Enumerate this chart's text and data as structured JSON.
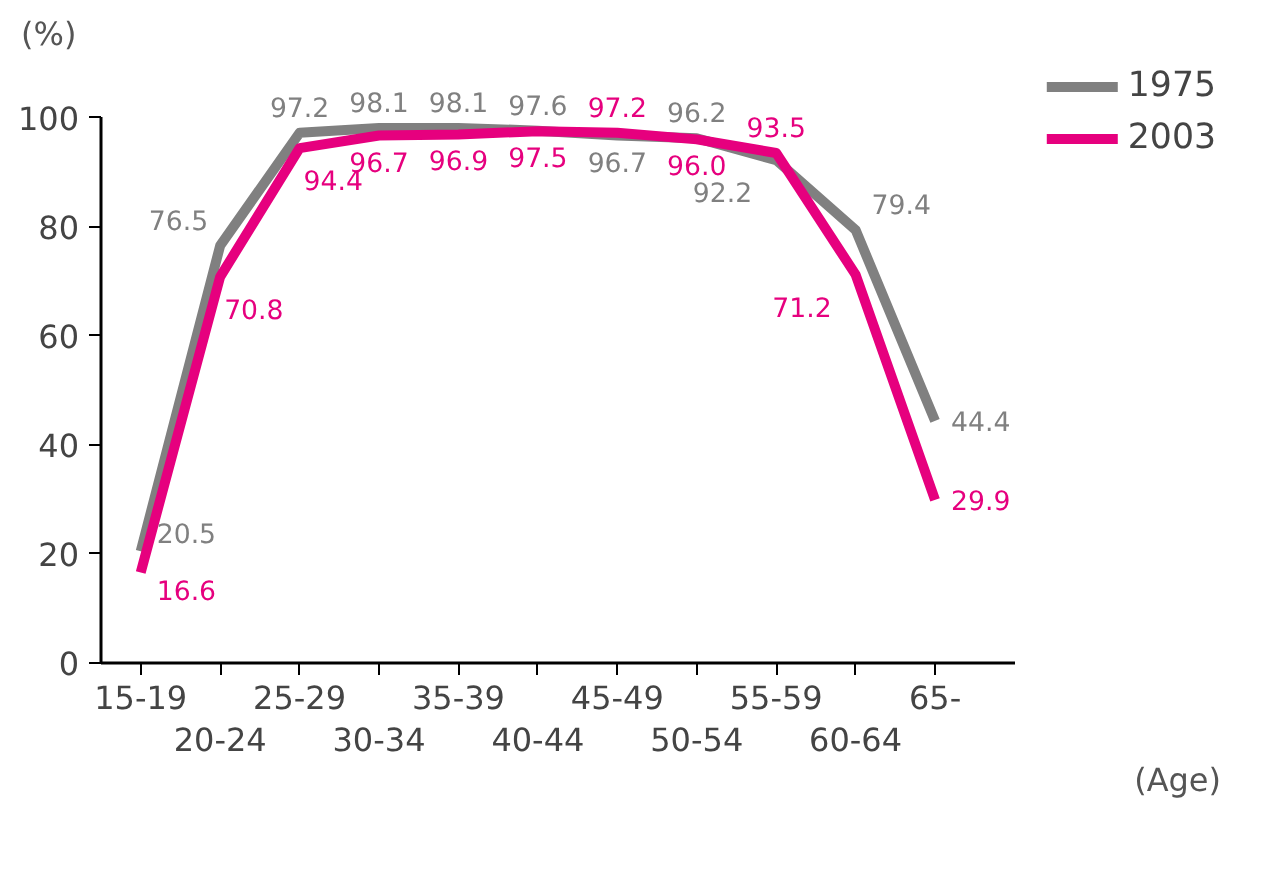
{
  "chart_data": {
    "type": "line",
    "ylabel": "(%)",
    "xlabel": "(Age)",
    "categories": [
      "15-19",
      "20-24",
      "25-29",
      "30-34",
      "35-39",
      "40-44",
      "45-49",
      "50-54",
      "55-59",
      "60-64",
      "65-"
    ],
    "series": [
      {
        "name": "1975",
        "color": "#808080",
        "values": [
          20.5,
          76.5,
          97.2,
          98.1,
          98.1,
          97.6,
          96.7,
          96.2,
          92.2,
          79.4,
          44.4
        ],
        "value_labels": [
          "20.5",
          "76.5",
          "97.2",
          "98.1",
          "98.1",
          "97.6",
          "96.7",
          "96.2",
          "92.2",
          "79.4",
          "44.4"
        ]
      },
      {
        "name": "2003",
        "color": "#e6007e",
        "values": [
          16.6,
          70.8,
          94.4,
          96.7,
          96.9,
          97.5,
          97.2,
          96.0,
          93.5,
          71.2,
          29.9
        ],
        "value_labels": [
          "16.6",
          "70.8",
          "94.4",
          "96.7",
          "96.9",
          "97.5",
          "97.2",
          "96.0",
          "93.5",
          "71.2",
          "29.9"
        ]
      }
    ],
    "ylim": [
      0,
      100
    ],
    "yticks": [
      0,
      20,
      40,
      60,
      80,
      100
    ],
    "grid": false,
    "legend": "top right",
    "marker": "none",
    "line_style": "solid"
  }
}
